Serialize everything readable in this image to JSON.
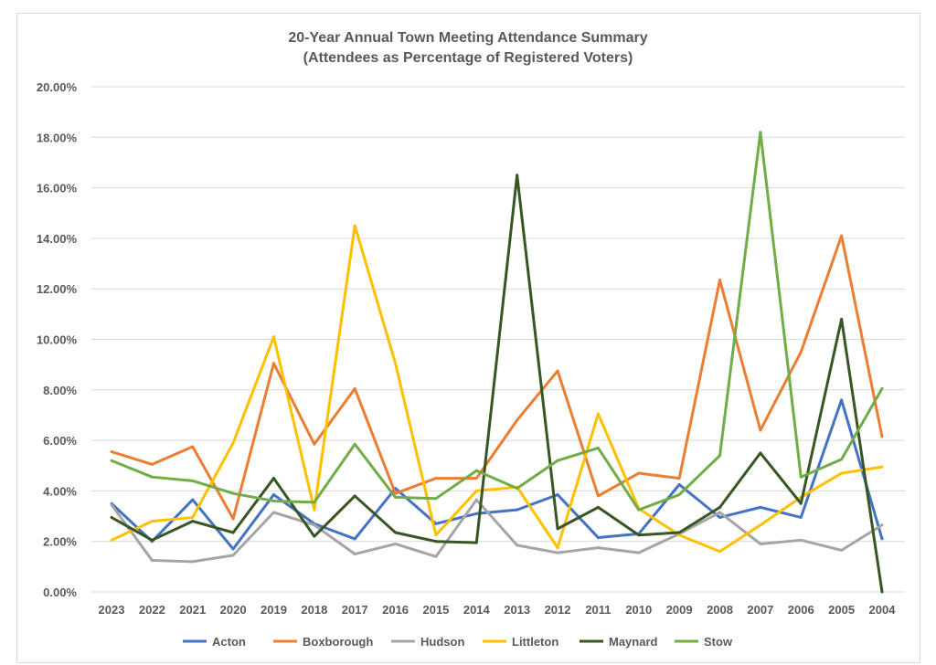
{
  "chart_data": {
    "type": "line",
    "title": "20-Year Annual Town Meeting Attendance Summary",
    "subtitle": "(Attendees as Percentage of Registered Voters)",
    "xlabel": "",
    "ylabel": "",
    "categories": [
      "2023",
      "2022",
      "2021",
      "2020",
      "2019",
      "2018",
      "2017",
      "2016",
      "2015",
      "2014",
      "2013",
      "2012",
      "2011",
      "2010",
      "2009",
      "2008",
      "2007",
      "2006",
      "2005",
      "2004"
    ],
    "ylim": [
      0,
      20
    ],
    "yticks": [
      "0.00%",
      "2.00%",
      "4.00%",
      "6.00%",
      "8.00%",
      "10.00%",
      "12.00%",
      "14.00%",
      "16.00%",
      "18.00%",
      "20.00%"
    ],
    "grid": true,
    "legend": "bottom",
    "series": [
      {
        "name": "Acton",
        "color": "#4472c4",
        "values": [
          3.5,
          2.0,
          3.65,
          1.7,
          3.85,
          2.7,
          2.1,
          4.1,
          2.7,
          3.1,
          3.25,
          3.85,
          2.15,
          2.3,
          4.25,
          2.95,
          3.35,
          2.95,
          7.6,
          2.1
        ]
      },
      {
        "name": "Boxborough",
        "color": "#ed7d31",
        "values": [
          5.55,
          5.05,
          5.75,
          2.9,
          9.05,
          5.85,
          8.05,
          3.9,
          4.5,
          4.5,
          6.8,
          8.75,
          3.8,
          4.7,
          4.5,
          12.35,
          6.4,
          9.5,
          14.1,
          6.15
        ]
      },
      {
        "name": "Hudson",
        "color": "#a5a5a5",
        "values": [
          3.45,
          1.25,
          1.2,
          1.45,
          3.15,
          2.65,
          1.5,
          1.9,
          1.4,
          3.65,
          1.85,
          1.55,
          1.75,
          1.55,
          2.3,
          3.15,
          1.9,
          2.05,
          1.65,
          2.65
        ]
      },
      {
        "name": "Littleton",
        "color": "#ffc000",
        "values": [
          2.05,
          2.8,
          2.95,
          5.9,
          10.1,
          3.25,
          14.5,
          9.05,
          2.25,
          4.0,
          4.15,
          1.75,
          7.05,
          3.3,
          2.25,
          1.6,
          2.65,
          3.75,
          4.7,
          4.95
        ]
      },
      {
        "name": "Maynard",
        "color": "#375623",
        "values": [
          2.95,
          2.05,
          2.8,
          2.35,
          4.5,
          2.2,
          3.8,
          2.35,
          2.0,
          1.95,
          16.5,
          2.5,
          3.35,
          2.25,
          2.35,
          3.35,
          5.5,
          3.5,
          10.8,
          0.0
        ]
      },
      {
        "name": "Stow",
        "color": "#70ad47",
        "values": [
          5.2,
          4.55,
          4.4,
          3.9,
          3.6,
          3.55,
          5.85,
          3.75,
          3.7,
          4.8,
          4.1,
          5.2,
          5.7,
          3.25,
          3.85,
          5.4,
          18.2,
          4.55,
          5.25,
          8.05
        ]
      }
    ]
  }
}
